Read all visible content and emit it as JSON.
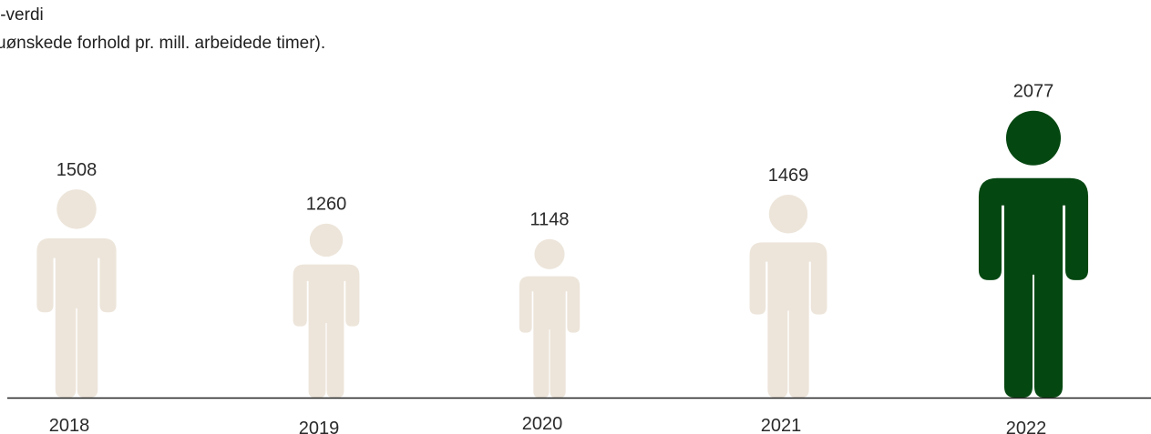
{
  "title_lines": [
    "l-verdi",
    "uønskede forhold pr. mill. arbeidede timer)."
  ],
  "colors": {
    "default": "#ede5da",
    "highlight": "#054711",
    "axis": "#222222"
  },
  "chart_data": {
    "type": "bar",
    "categories": [
      "2018",
      "2019",
      "2020",
      "2021",
      "2022"
    ],
    "values": [
      1508,
      1260,
      1148,
      1469,
      2077
    ],
    "highlight_category": "2022"
  }
}
